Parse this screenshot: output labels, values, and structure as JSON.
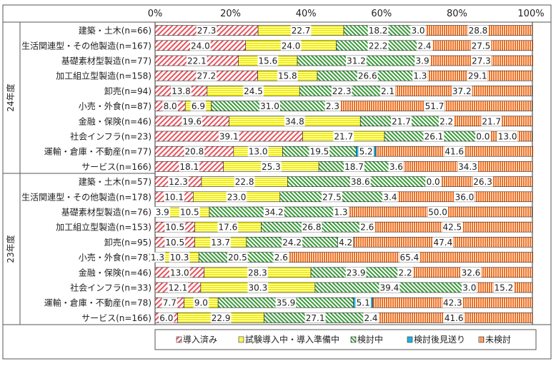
{
  "chart_data": {
    "type": "bar",
    "stacked": true,
    "orientation": "horizontal",
    "xlim": [
      0,
      100
    ],
    "x_ticks": [
      "0%",
      "20%",
      "40%",
      "60%",
      "80%",
      "100%"
    ],
    "series_names": [
      "導入済み",
      "試験導入中・導入準備中",
      "検討中",
      "検討後見送り",
      "未検討"
    ],
    "colors": [
      "#e8535b",
      "#f5f000",
      "#3a9a3a",
      "#22b0e0",
      "#f07020"
    ],
    "legend_position": "bottom",
    "groups": [
      {
        "label": "24年度",
        "rows": [
          {
            "category": "建築・土木(n=66)",
            "values": [
              27.3,
              22.7,
              18.2,
              3.0,
              28.8
            ]
          },
          {
            "category": "生活関連型・その他製造(n=167)",
            "values": [
              24.0,
              24.0,
              22.2,
              2.4,
              27.5
            ]
          },
          {
            "category": "基礎素材型製造(n=77)",
            "values": [
              22.1,
              15.6,
              31.2,
              3.9,
              27.3
            ]
          },
          {
            "category": "加工組立型製造(n=158)",
            "values": [
              27.2,
              15.8,
              26.6,
              1.3,
              29.1
            ]
          },
          {
            "category": "卸売(n=94)",
            "values": [
              13.8,
              24.5,
              22.3,
              2.1,
              37.2
            ]
          },
          {
            "category": "小売・外食(n=87)",
            "values": [
              8.0,
              6.9,
              31.0,
              2.3,
              51.7
            ]
          },
          {
            "category": "金融・保険(n=46)",
            "values": [
              19.6,
              34.8,
              21.7,
              2.2,
              21.7
            ]
          },
          {
            "category": "社会インフラ(n=23)",
            "values": [
              39.1,
              21.7,
              26.1,
              0.0,
              13.0
            ]
          },
          {
            "category": "運輸・倉庫・不動産(n=77)",
            "values": [
              20.8,
              13.0,
              19.5,
              5.2,
              41.6
            ]
          },
          {
            "category": "サービス(n=166)",
            "values": [
              18.1,
              25.3,
              18.7,
              3.6,
              34.3
            ]
          }
        ]
      },
      {
        "label": "23年度",
        "rows": [
          {
            "category": "建築・土木(n=57)",
            "values": [
              12.3,
              22.8,
              38.6,
              0.0,
              26.3
            ]
          },
          {
            "category": "生活関連型・その他製造(n=178)",
            "values": [
              10.1,
              23.0,
              27.5,
              3.4,
              36.0
            ]
          },
          {
            "category": "基礎素材型製造(n=76)",
            "values": [
              3.9,
              10.5,
              34.2,
              1.3,
              50.0
            ]
          },
          {
            "category": "加工組立型製造(n=153)",
            "values": [
              10.5,
              17.6,
              26.8,
              2.6,
              42.5
            ]
          },
          {
            "category": "卸売(n=95)",
            "values": [
              10.5,
              13.7,
              24.2,
              4.2,
              47.4
            ]
          },
          {
            "category": "小売・外食(n=78)",
            "values": [
              1.3,
              10.3,
              20.5,
              2.6,
              65.4
            ]
          },
          {
            "category": "金融・保険(n=46)",
            "values": [
              13.0,
              28.3,
              23.9,
              2.2,
              32.6
            ]
          },
          {
            "category": "社会インフラ(n=33)",
            "values": [
              12.1,
              30.3,
              39.4,
              3.0,
              15.2
            ]
          },
          {
            "category": "運輸・倉庫・不動産(n=78)",
            "values": [
              7.7,
              9.0,
              35.9,
              5.1,
              42.3
            ]
          },
          {
            "category": "サービス(n=166)",
            "values": [
              6.0,
              22.9,
              27.1,
              2.4,
              41.6
            ]
          }
        ]
      }
    ]
  }
}
